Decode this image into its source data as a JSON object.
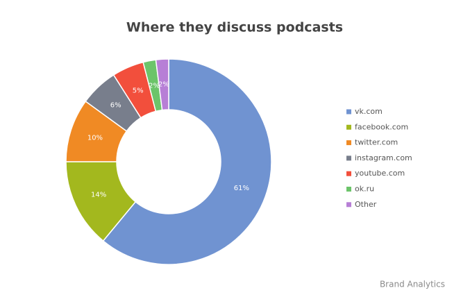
{
  "chart_data": {
    "type": "donut",
    "title": "Where they discuss podcasts",
    "categories": [
      "vk.com",
      "facebook.com",
      "twitter.com",
      "instagram.com",
      "youtube.com",
      "ok.ru",
      "Other"
    ],
    "values": [
      61,
      14,
      10,
      6,
      5,
      2,
      2
    ],
    "value_labels": [
      "61%",
      "14%",
      "10%",
      "6%",
      "5%",
      "2%",
      "2%"
    ],
    "colors": [
      "#7093d1",
      "#a3b81e",
      "#f08a24",
      "#787e8c",
      "#f24f3c",
      "#6cc46a",
      "#b77fd6"
    ],
    "legend": "right",
    "source": "Brand Analytics"
  }
}
